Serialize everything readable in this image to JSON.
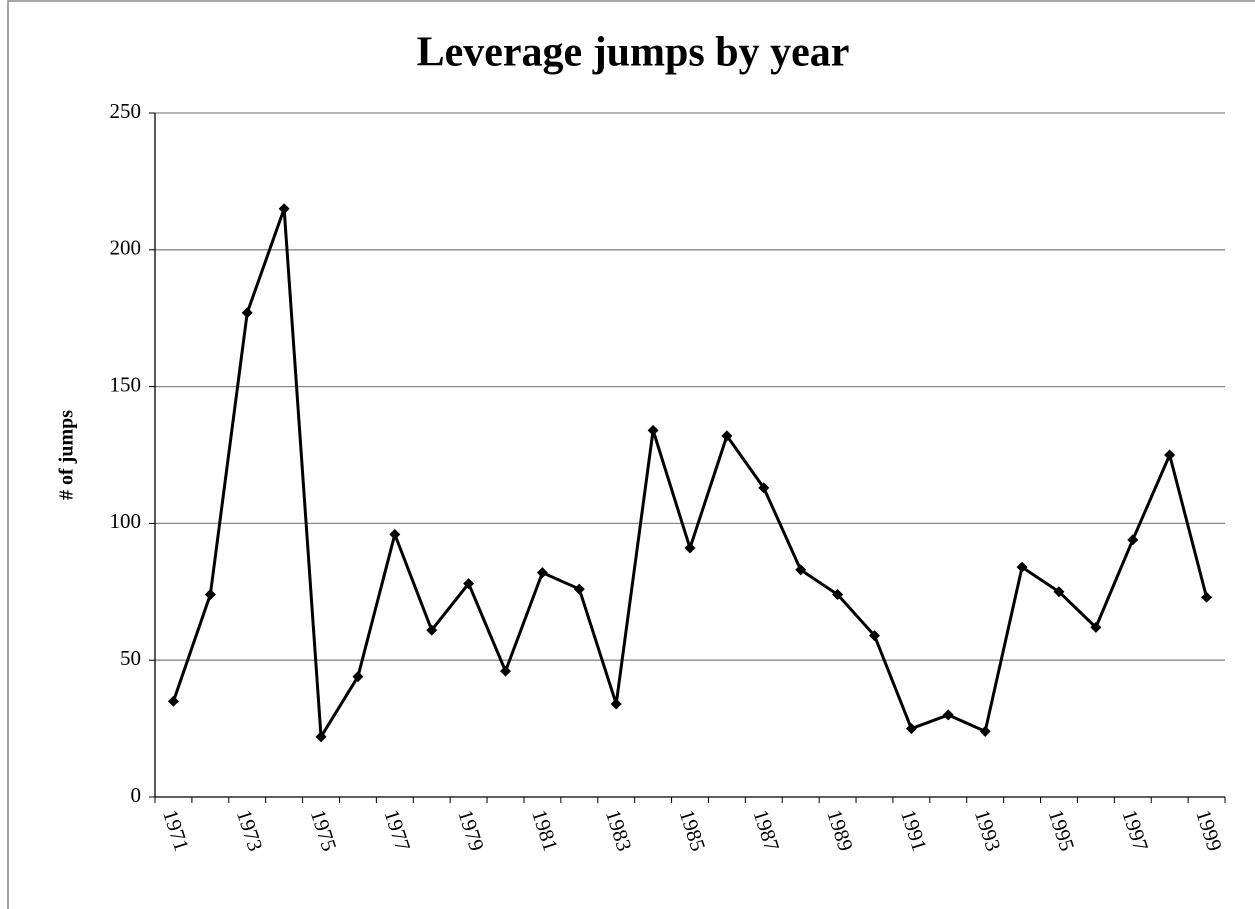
{
  "chart_data": {
    "type": "line",
    "title": "Leverage jumps by year",
    "y_label": "# of jumps",
    "categories": [
      "1971",
      null,
      "1973",
      null,
      "1975",
      null,
      "1977",
      null,
      "1979",
      null,
      "1981",
      null,
      "1983",
      null,
      "1985",
      null,
      "1987",
      null,
      "1989",
      null,
      "1991",
      null,
      "1993",
      null,
      "1995",
      null,
      "1997",
      null,
      "1999"
    ],
    "series": [
      {
        "color": "#000000",
        "values": [
          35,
          74,
          177,
          215,
          22,
          44,
          96,
          61,
          78,
          46,
          82,
          76,
          34,
          134,
          91,
          132,
          113,
          83,
          74,
          59,
          25,
          30,
          24,
          84,
          75,
          62,
          94,
          125,
          73
        ]
      }
    ],
    "ylim": [
      0,
      250
    ],
    "yticks": [
      0,
      50,
      100,
      150,
      200,
      250
    ],
    "grid": true
  }
}
